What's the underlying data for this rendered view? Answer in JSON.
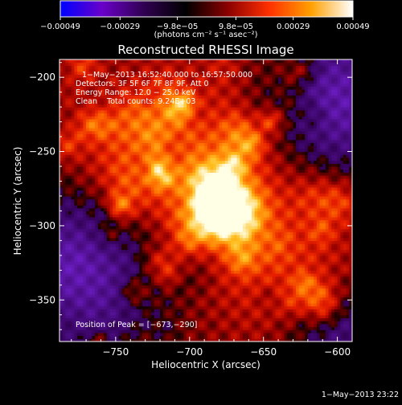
{
  "chart_data": {
    "type": "heatmap",
    "title": "Reconstructed RHESSI Image",
    "xlabel": "Heliocentric X (arcsec)",
    "ylabel": "Heliocentric Y (arcsec)",
    "xlim": [
      -788,
      -590
    ],
    "ylim": [
      -378,
      -188
    ],
    "x_ticks": [
      -750,
      -700,
      -650,
      -600
    ],
    "x_tick_labels": [
      "−750",
      "−700",
      "−650",
      "−600"
    ],
    "y_ticks": [
      -200,
      -250,
      -300,
      -350
    ],
    "y_tick_labels": [
      "−200",
      "−250",
      "−300",
      "−350"
    ],
    "colorbar": {
      "range": [
        -0.00049,
        0.00049
      ],
      "ticks": [
        -0.00049,
        -0.00029,
        -9.8e-05,
        9.8e-05,
        0.00029,
        0.00049
      ],
      "tick_labels": [
        "−0.00049",
        "−0.00029",
        "−9.8e−05",
        "9.8e−05",
        "0.00029",
        "0.00049"
      ],
      "units_label": "(photons cm⁻² s⁻¹ asec⁻²)"
    },
    "annotations": [
      "1−May−2013 16:52:40.000 to 16:57:50.000",
      "Detectors: 3F 5F 6F 7F 8F 9F, Att 0",
      "Energy Range: 12.0 − 25.0 keV",
      "Clean    Total counts: 9.24E+03"
    ],
    "peak": {
      "label": "Position of Peak = [−673,−290]",
      "x": -673,
      "y": -290
    },
    "timestamp": "1−May−2013 23:22",
    "colormap_colors": [
      "#0000ff",
      "#6a00c8",
      "#300050",
      "#000000",
      "#8a0000",
      "#ff3000",
      "#ffa000",
      "#ffffff"
    ]
  }
}
